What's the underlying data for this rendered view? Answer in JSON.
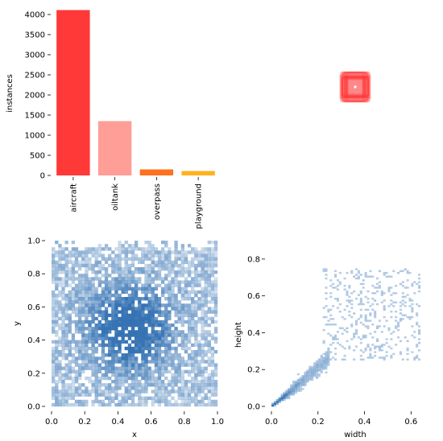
{
  "chart_data": [
    {
      "type": "bar",
      "categories": [
        "aircraft",
        "oiltank",
        "overpass",
        "playground"
      ],
      "values": [
        4110,
        1350,
        150,
        110
      ],
      "colors": [
        "#ff3838",
        "#ff9d97",
        "#ff701f",
        "#ffb21d"
      ],
      "xlabel": "",
      "ylabel": "instances",
      "ylim": [
        0,
        4200
      ],
      "yticks": [
        "0",
        "500",
        "1000",
        "1500",
        "2000",
        "2500",
        "3000",
        "3500",
        "4000"
      ],
      "grid": false
    },
    {
      "type": "other",
      "description_free": true,
      "glyph": "stacked bounding boxes",
      "colors": [
        "#ff3838",
        "#ffffff"
      ]
    },
    {
      "type": "heatmap",
      "xlabel": "x",
      "ylabel": "y",
      "xlim": [
        0,
        1
      ],
      "ylim": [
        0,
        1
      ],
      "xticks": [
        "0.0",
        "0.2",
        "0.4",
        "0.6",
        "0.8",
        "1.0"
      ],
      "yticks": [
        "0.0",
        "0.2",
        "0.4",
        "0.6",
        "0.8",
        "1.0"
      ],
      "center": [
        0.47,
        0.47
      ],
      "color": "#2b6cb0"
    },
    {
      "type": "heatmap",
      "xlabel": "width",
      "ylabel": "height",
      "xlim": [
        0,
        0.72
      ],
      "ylim": [
        0,
        0.9
      ],
      "xticks": [
        "0.0",
        "0.2",
        "0.4",
        "0.6"
      ],
      "yticks": [
        "0.0",
        "0.2",
        "0.4",
        "0.6",
        "0.8"
      ],
      "color": "#2b6cb0"
    }
  ]
}
